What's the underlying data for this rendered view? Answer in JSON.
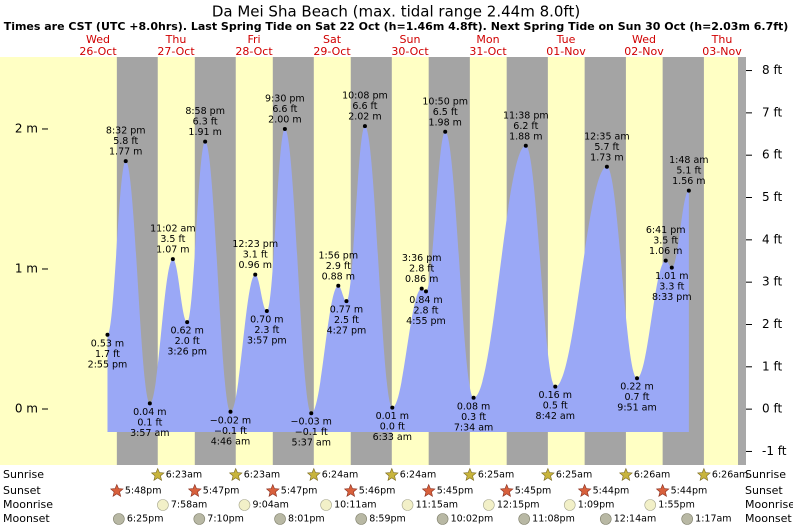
{
  "chart_data": {
    "type": "area",
    "title": "Da Mei Sha Beach (max. tidal range 2.44m 8.0ft)",
    "subtitle": "Times are CST (UTC +8.0hrs). Last Spring Tide on Sat 22 Oct (h=1.46m 4.8ft). Next Spring Tide on Sun 30 Oct (h=2.03m 6.7ft)",
    "color": "#9aa8f6",
    "ylim": [
      -0.4,
      2.514
    ],
    "yticks": [
      {
        "value": 0,
        "label": "0 m"
      },
      {
        "value": 1,
        "label": "1 m"
      },
      {
        "value": 2,
        "label": "2 m"
      }
    ],
    "y2lim": [
      -1.32,
      8.32
    ],
    "y2ticks": [
      {
        "value": -1,
        "label": "-1 ft"
      },
      {
        "value": 0,
        "label": "0 ft"
      },
      {
        "value": 1,
        "label": "1 ft"
      },
      {
        "value": 2,
        "label": "2 ft"
      },
      {
        "value": 3,
        "label": "3 ft"
      },
      {
        "value": 4,
        "label": "4 ft"
      },
      {
        "value": 5,
        "label": "5 ft"
      },
      {
        "value": 6,
        "label": "6 ft"
      },
      {
        "value": 7,
        "label": "7 ft"
      },
      {
        "value": 8,
        "label": "8 ft"
      }
    ],
    "days": [
      {
        "weekday": "Wed",
        "date": "26-Oct",
        "tides": [
          {
            "time": "2:55 pm",
            "m": 0.53,
            "m_label": "0.53 m",
            "ft_label": "1.7 ft"
          },
          {
            "time": "8:32 pm",
            "m": 1.77,
            "m_label": "1.77 m",
            "ft_label": "5.8 ft"
          }
        ]
      },
      {
        "weekday": "Thu",
        "date": "27-Oct",
        "tides": [
          {
            "time": "3:57 am",
            "m": 0.04,
            "m_label": "0.04 m",
            "ft_label": "0.1 ft"
          },
          {
            "time": "11:02 am",
            "m": 1.07,
            "m_label": "1.07 m",
            "ft_label": "3.5 ft"
          },
          {
            "time": "3:26 pm",
            "m": 0.62,
            "m_label": "0.62 m",
            "ft_label": "2.0 ft"
          },
          {
            "time": "8:58 pm",
            "m": 1.91,
            "m_label": "1.91 m",
            "ft_label": "6.3 ft"
          }
        ]
      },
      {
        "weekday": "Fri",
        "date": "28-Oct",
        "tides": [
          {
            "time": "4:46 am",
            "m": -0.02,
            "m_label": "−0.02 m",
            "ft_label": "−0.1 ft"
          },
          {
            "time": "12:23 pm",
            "m": 0.96,
            "m_label": "0.96 m",
            "ft_label": "3.1 ft"
          },
          {
            "time": "3:57 pm",
            "m": 0.7,
            "m_label": "0.70 m",
            "ft_label": "2.3 ft"
          },
          {
            "time": "9:30 pm",
            "m": 2.0,
            "m_label": "2.00 m",
            "ft_label": "6.6 ft"
          }
        ]
      },
      {
        "weekday": "Sat",
        "date": "29-Oct",
        "tides": [
          {
            "time": "5:37 am",
            "m": -0.03,
            "m_label": "−0.03 m",
            "ft_label": "−0.1 ft"
          },
          {
            "time": "1:56 pm",
            "m": 0.88,
            "m_label": "0.88 m",
            "ft_label": "2.9 ft"
          },
          {
            "time": "4:27 pm",
            "m": 0.77,
            "m_label": "0.77 m",
            "ft_label": "2.5 ft"
          },
          {
            "time": "10:08 pm",
            "m": 2.02,
            "m_label": "2.02 m",
            "ft_label": "6.6 ft"
          }
        ]
      },
      {
        "weekday": "Sun",
        "date": "30-Oct",
        "tides": [
          {
            "time": "6:33 am",
            "m": 0.01,
            "m_label": "0.01 m",
            "ft_label": "0.0 ft"
          },
          {
            "time": "3:36 pm",
            "m": 0.86,
            "m_label": "0.86 m",
            "ft_label": "2.8 ft"
          },
          {
            "time": "4:55 pm",
            "m": 0.84,
            "m_label": "0.84 m",
            "ft_label": "2.8 ft"
          },
          {
            "time": "10:50 pm",
            "m": 1.98,
            "m_label": "1.98 m",
            "ft_label": "6.5 ft"
          }
        ]
      },
      {
        "weekday": "Mon",
        "date": "31-Oct",
        "tides": [
          {
            "time": "7:34 am",
            "m": 0.08,
            "m_label": "0.08 m",
            "ft_label": "0.3 ft"
          },
          {
            "time": "11:38 pm",
            "m": 1.88,
            "m_label": "1.88 m",
            "ft_label": "6.2 ft"
          }
        ]
      },
      {
        "weekday": "Tue",
        "date": "01-Nov",
        "tides": [
          {
            "time": "8:42 am",
            "m": 0.16,
            "m_label": "0.16 m",
            "ft_label": "0.5 ft"
          }
        ]
      },
      {
        "weekday": "Wed",
        "date": "02-Nov",
        "tides": [
          {
            "time": "12:35 am",
            "m": 1.73,
            "m_label": "1.73 m",
            "ft_label": "5.7 ft"
          },
          {
            "time": "9:51 am",
            "m": 0.22,
            "m_label": "0.22 m",
            "ft_label": "0.7 ft"
          },
          {
            "time": "6:41 pm",
            "m": 1.06,
            "m_label": "1.06 m",
            "ft_label": "3.5 ft"
          },
          {
            "time": "8:33 pm",
            "m": 1.01,
            "m_label": "1.01 m",
            "ft_label": "3.3 ft"
          }
        ]
      },
      {
        "weekday": "Thu",
        "date": "03-Nov",
        "tides": [
          {
            "time": "1:48 am",
            "m": 1.56,
            "m_label": "1.56 m",
            "ft_label": "5.1 ft"
          }
        ]
      }
    ],
    "rows": [
      {
        "name": "Sunrise",
        "icon": "sunrise",
        "events": [
          null,
          "6:23am",
          "6:23am",
          "6:24am",
          "6:24am",
          "6:25am",
          "6:25am",
          "6:26am",
          "6:26am"
        ]
      },
      {
        "name": "Sunset",
        "icon": "sunset",
        "events": [
          "5:48pm",
          "5:47pm",
          "5:47pm",
          "5:46pm",
          "5:45pm",
          "5:45pm",
          "5:44pm",
          "5:44pm",
          null
        ]
      },
      {
        "name": "Moonrise",
        "icon": "moonrise",
        "events": [
          null,
          "7:58am",
          "9:04am",
          "10:11am",
          "11:15am",
          "12:15pm",
          "1:09pm",
          "1:55pm",
          null
        ]
      },
      {
        "name": "Moonset",
        "icon": "moonset",
        "events": [
          "6:25pm",
          "7:10pm",
          "8:01pm",
          "8:59pm",
          "10:02pm",
          "11:08pm",
          null,
          "12:14am",
          "1:17am"
        ]
      }
    ]
  }
}
